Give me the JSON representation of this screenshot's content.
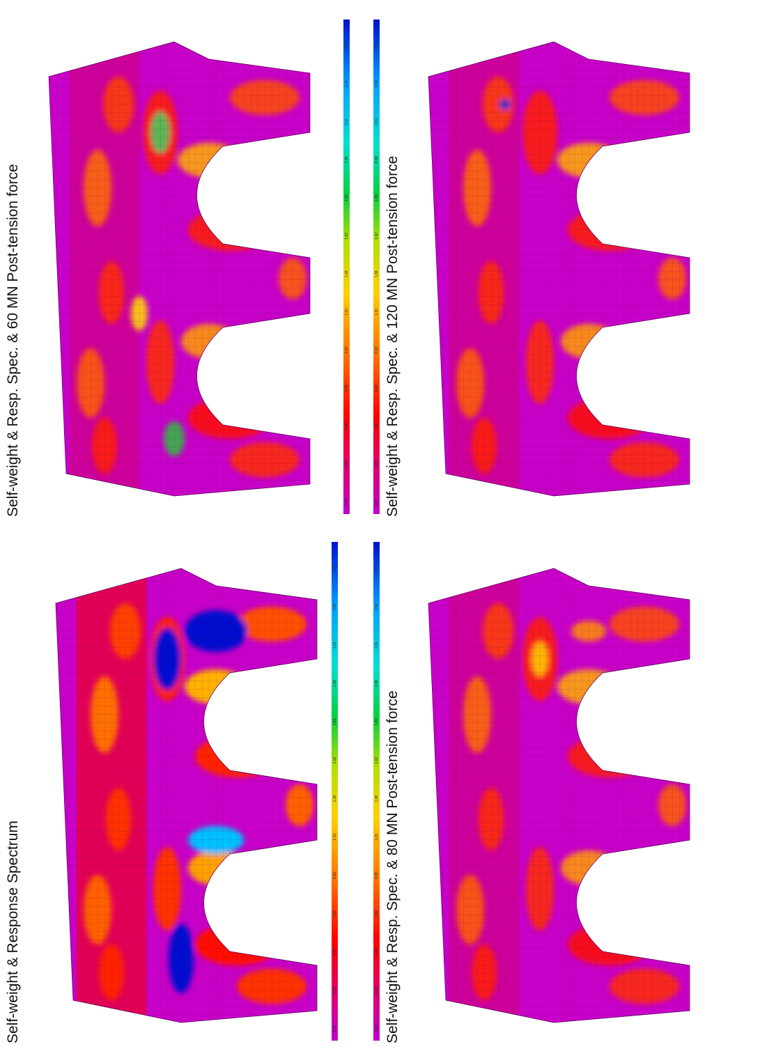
{
  "panels": [
    {
      "title": "Self-weight & Resp. Spec. & 60 MN Post-tension force"
    },
    {
      "title": "Self-weight & Resp. Spec. & 120 MN Post-tension force"
    },
    {
      "title": "Self-weight & Response Spectrum"
    },
    {
      "title": "Self-weight & Resp. Spec. & 80 MN Post-tension force"
    }
  ],
  "colorbar": {
    "labels": [
      "0.00",
      "0.23",
      "0.46",
      "0.69",
      "0.92",
      "1.15",
      "1.38",
      "1.62",
      "1.85",
      "2.08",
      "2.31",
      "2.54",
      "2.77"
    ]
  }
}
